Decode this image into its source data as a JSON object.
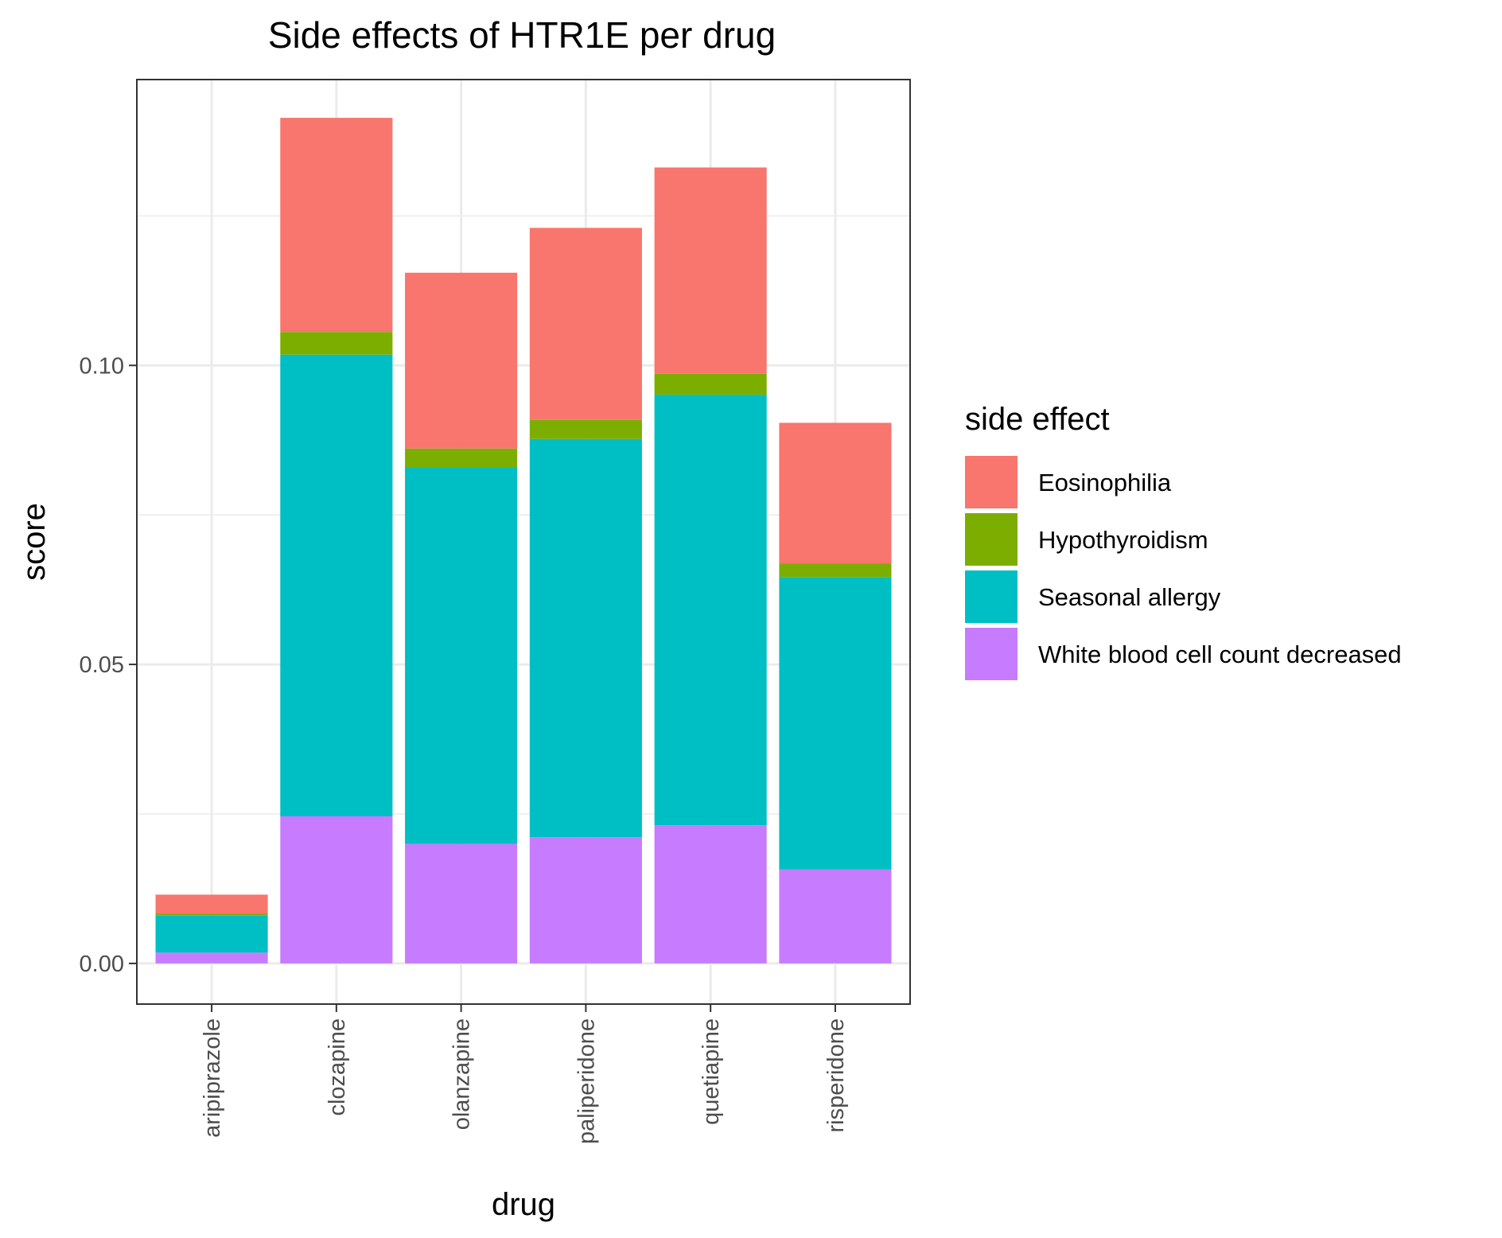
{
  "chart_data": {
    "type": "bar",
    "stacked": true,
    "title": "Side effects of HTR1E per drug",
    "xlabel": "drug",
    "ylabel": "score",
    "categories": [
      "aripiprazole",
      "clozapine",
      "olanzapine",
      "paliperidone",
      "quetiapine",
      "risperidone"
    ],
    "series": [
      {
        "name": "White blood cell count decreased",
        "color": "#C77CFF",
        "values": [
          0.0018,
          0.0246,
          0.02,
          0.0211,
          0.0231,
          0.0157
        ]
      },
      {
        "name": "Seasonal allergy",
        "color": "#00BFC4",
        "values": [
          0.0062,
          0.0772,
          0.063,
          0.0666,
          0.072,
          0.0489
        ]
      },
      {
        "name": "Hypothyroidism",
        "color": "#7CAE00",
        "values": [
          0.0003,
          0.0038,
          0.0031,
          0.0032,
          0.0035,
          0.0023
        ]
      },
      {
        "name": "Eosinophilia",
        "color": "#F8766D",
        "values": [
          0.0032,
          0.0358,
          0.0294,
          0.0321,
          0.0345,
          0.0235
        ]
      }
    ],
    "legend": {
      "title": "side effect",
      "position": "right",
      "order": [
        "Eosinophilia",
        "Hypothyroidism",
        "Seasonal allergy",
        "White blood cell count decreased"
      ]
    },
    "yticks": [
      {
        "value": 0.0,
        "label": "0.00"
      },
      {
        "value": 0.05,
        "label": "0.05"
      },
      {
        "value": 0.1,
        "label": "0.10"
      }
    ],
    "y_minor_ticks": [
      0.025,
      0.075,
      0.125
    ],
    "ylim": [
      -0.0068,
      0.1478
    ],
    "grid": true,
    "theme": "bw"
  }
}
